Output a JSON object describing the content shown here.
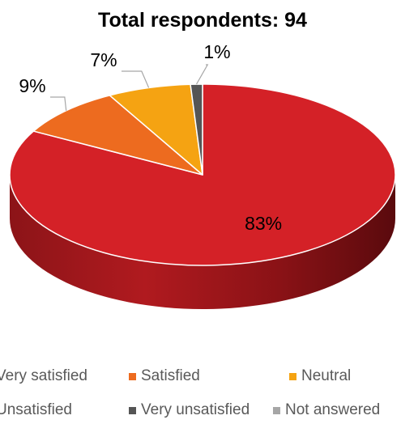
{
  "chart_data": {
    "type": "pie",
    "title": "Total respondents: 94",
    "series": [
      {
        "name": "Very satisfied",
        "value": 83,
        "label": "83%",
        "color": "#d42127"
      },
      {
        "name": "Satisfied",
        "value": 9,
        "label": "9%",
        "color": "#ed6b1f"
      },
      {
        "name": "Neutral",
        "value": 7,
        "label": "7%",
        "color": "#f5a312"
      },
      {
        "name": "Unsatisfied",
        "value": 0,
        "label": "",
        "color": "#ffd23f"
      },
      {
        "name": "Very unsatisfied",
        "value": 1,
        "label": "1%",
        "color": "#555555"
      },
      {
        "name": "Not answered",
        "value": 0,
        "label": "",
        "color": "#a6a6a6"
      }
    ],
    "legend_position": "bottom",
    "style": "3d"
  }
}
